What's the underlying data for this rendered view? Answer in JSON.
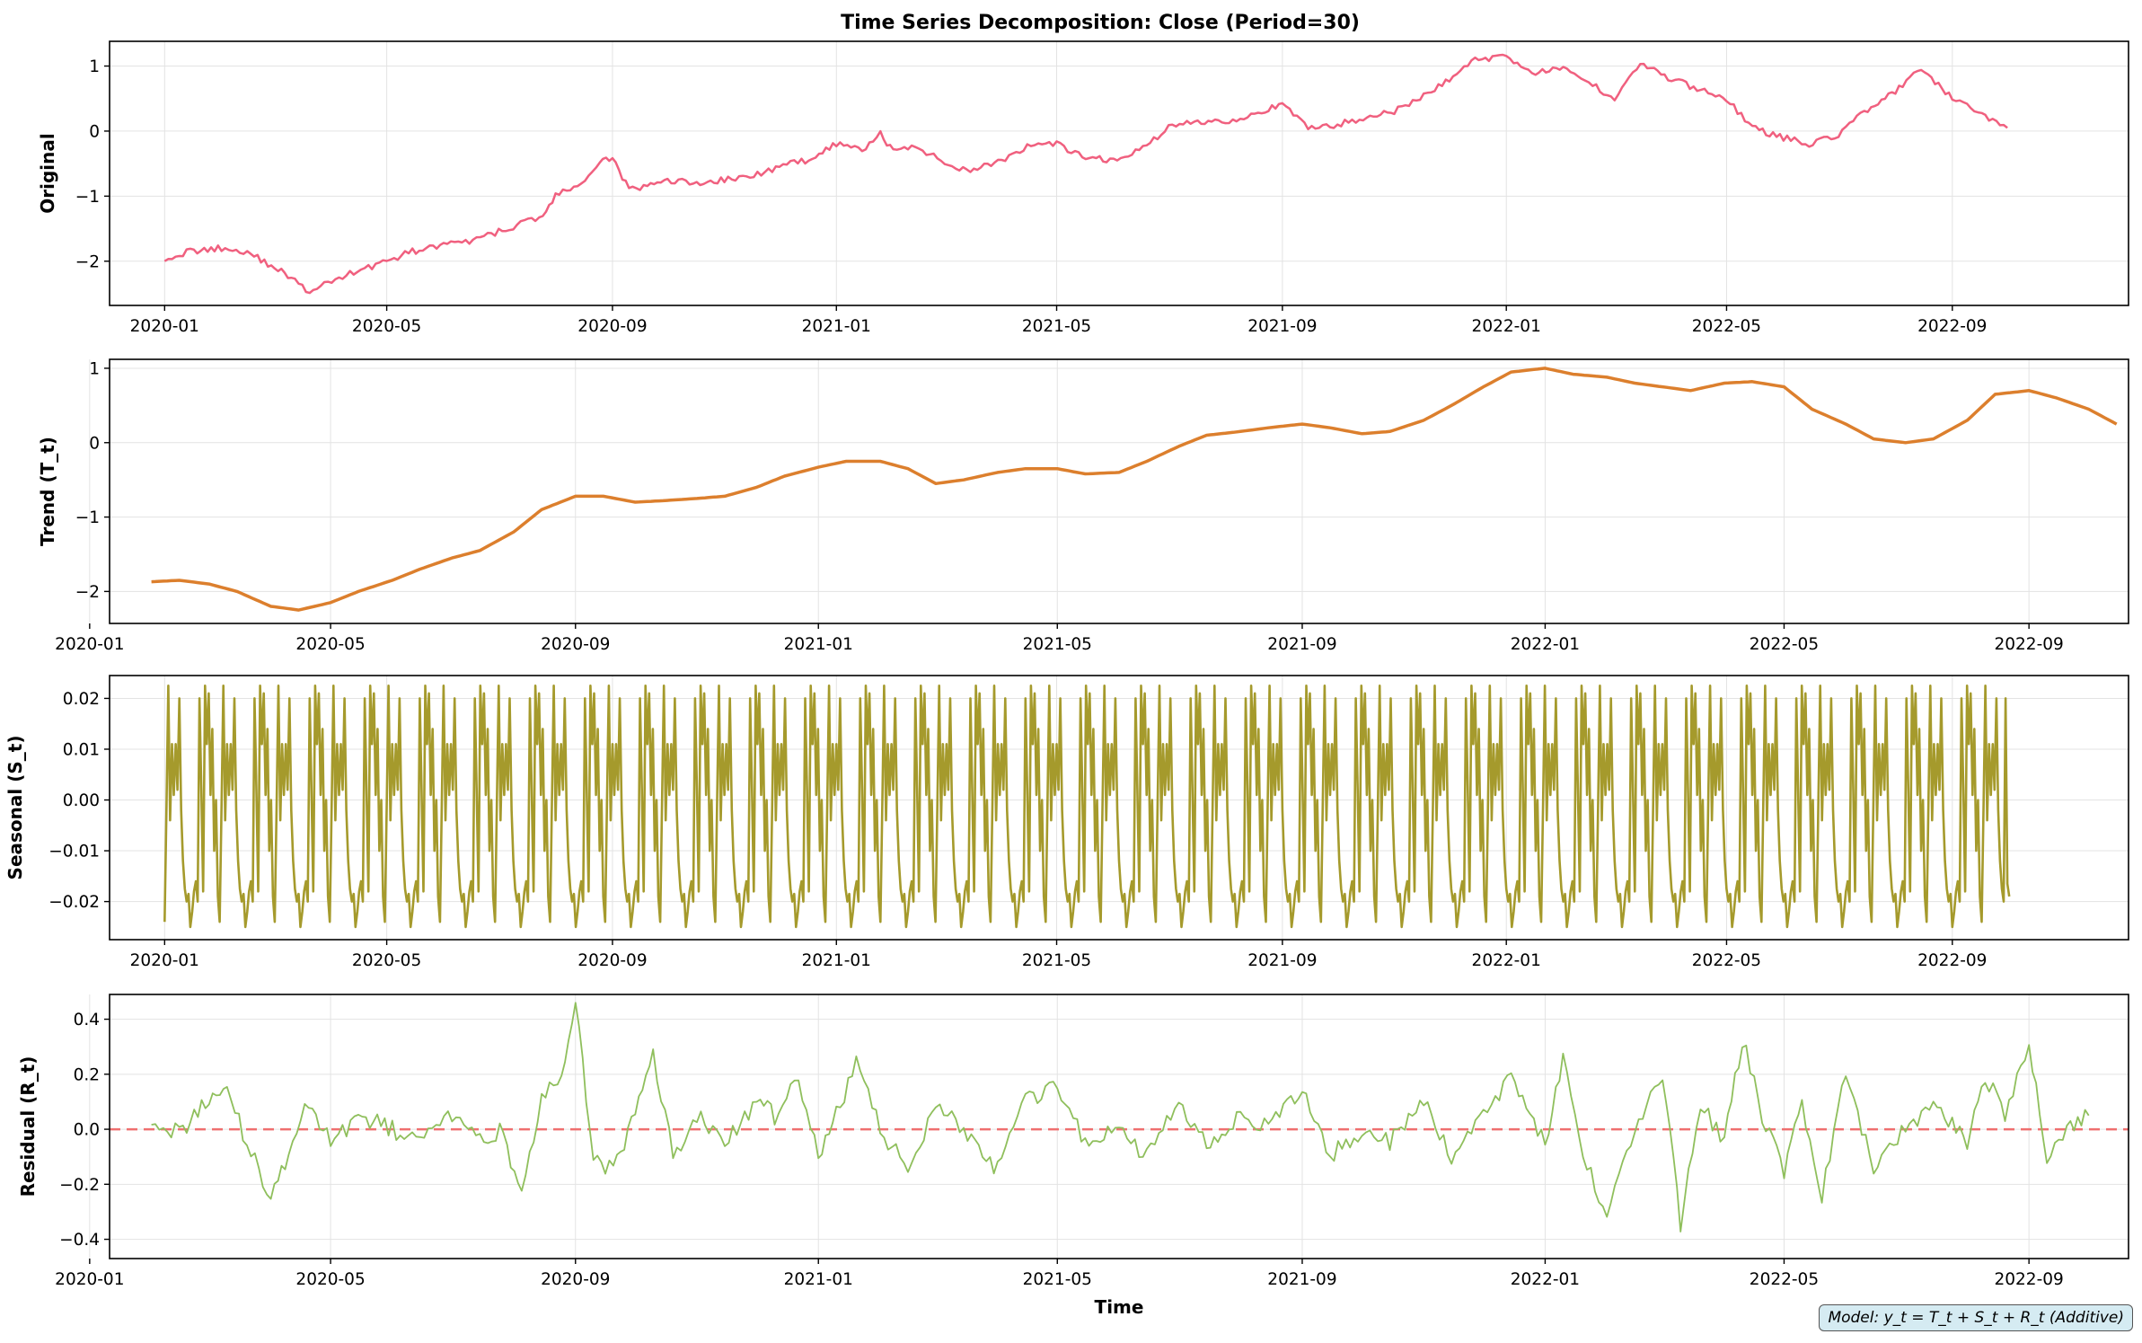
{
  "figure": {
    "title": "Time Series Decomposition: Close (Period=30)",
    "xlabel": "Time",
    "note": "Model: y_t = T_t + S_t + R_t (Additive)"
  },
  "chart_data": [
    {
      "type": "line",
      "name": "original",
      "ylabel": "Original",
      "color": "#f0607f",
      "x_range": [
        "2019-12-02",
        "2022-12-06"
      ],
      "ylim": [
        -2.68,
        1.38
      ],
      "yticks": [
        -2,
        -1,
        0,
        1
      ],
      "xticks": [
        "2020-01",
        "2020-05",
        "2020-09",
        "2021-01",
        "2021-05",
        "2021-09",
        "2022-01",
        "2022-05",
        "2022-09"
      ],
      "grid": true,
      "series": [
        {
          "dates": [
            "2020-01-01",
            "2020-01-15",
            "2020-02-01",
            "2020-02-15",
            "2020-03-01",
            "2020-03-10",
            "2020-03-20",
            "2020-04-01",
            "2020-04-15",
            "2020-05-01",
            "2020-05-15",
            "2020-06-01",
            "2020-06-15",
            "2020-07-01",
            "2020-07-15",
            "2020-07-25",
            "2020-08-01",
            "2020-08-15",
            "2020-08-25",
            "2020-09-01",
            "2020-09-10",
            "2020-09-20",
            "2020-10-01",
            "2020-10-15",
            "2020-11-01",
            "2020-11-15",
            "2020-12-01",
            "2020-12-15",
            "2021-01-01",
            "2021-01-15",
            "2021-01-25",
            "2021-02-01",
            "2021-02-15",
            "2021-03-01",
            "2021-03-15",
            "2021-04-01",
            "2021-04-15",
            "2021-05-01",
            "2021-05-15",
            "2021-06-01",
            "2021-06-15",
            "2021-07-01",
            "2021-07-15",
            "2021-08-01",
            "2021-08-15",
            "2021-09-01",
            "2021-09-15",
            "2021-10-01",
            "2021-10-15",
            "2021-11-01",
            "2021-11-15",
            "2021-12-01",
            "2021-12-15",
            "2022-01-01",
            "2022-01-15",
            "2022-02-01",
            "2022-02-15",
            "2022-03-01",
            "2022-03-15",
            "2022-04-01",
            "2022-04-15",
            "2022-05-01",
            "2022-05-15",
            "2022-06-01",
            "2022-06-15",
            "2022-07-01",
            "2022-07-15",
            "2022-08-01",
            "2022-08-15",
            "2022-09-01",
            "2022-09-15",
            "2022-10-01"
          ],
          "values": [
            -1.95,
            -1.85,
            -1.8,
            -1.85,
            -2.1,
            -2.25,
            -2.5,
            -2.3,
            -2.15,
            -2.0,
            -1.85,
            -1.75,
            -1.7,
            -1.55,
            -1.4,
            -1.3,
            -1.0,
            -0.8,
            -0.5,
            -0.4,
            -0.9,
            -0.85,
            -0.75,
            -0.8,
            -0.75,
            -0.7,
            -0.55,
            -0.45,
            -0.2,
            -0.3,
            -0.05,
            -0.3,
            -0.25,
            -0.5,
            -0.6,
            -0.45,
            -0.25,
            -0.2,
            -0.4,
            -0.45,
            -0.3,
            0.05,
            0.15,
            0.15,
            0.25,
            0.4,
            0.05,
            0.1,
            0.2,
            0.3,
            0.5,
            0.8,
            1.1,
            1.15,
            0.9,
            0.95,
            0.75,
            0.5,
            1.05,
            0.8,
            0.65,
            0.5,
            0.05,
            -0.1,
            -0.2,
            -0.05,
            0.3,
            0.6,
            0.95,
            0.5,
            0.3,
            0.05
          ]
        }
      ]
    },
    {
      "type": "line",
      "name": "trend",
      "ylabel": "Trend (T_t)",
      "color": "#dc7f2d",
      "x_range": [
        "2020-01-11",
        "2022-10-21"
      ],
      "ylim": [
        -2.43,
        1.12
      ],
      "yticks": [
        -2,
        -1,
        0,
        1
      ],
      "xticks": [
        "2020-01",
        "2020-05",
        "2020-09",
        "2021-01",
        "2021-05",
        "2021-09",
        "2022-01",
        "2022-05",
        "2022-09"
      ],
      "grid": true,
      "series": [
        {
          "dates": [
            "2020-02-01",
            "2020-02-15",
            "2020-03-01",
            "2020-03-15",
            "2020-04-01",
            "2020-04-15",
            "2020-05-01",
            "2020-05-15",
            "2020-06-01",
            "2020-06-15",
            "2020-07-01",
            "2020-07-15",
            "2020-08-01",
            "2020-08-15",
            "2020-09-01",
            "2020-09-15",
            "2020-10-01",
            "2020-10-15",
            "2020-11-01",
            "2020-11-15",
            "2020-12-01",
            "2020-12-15",
            "2021-01-01",
            "2021-01-15",
            "2021-02-01",
            "2021-02-15",
            "2021-03-01",
            "2021-03-15",
            "2021-04-01",
            "2021-04-15",
            "2021-05-01",
            "2021-05-15",
            "2021-06-01",
            "2021-06-15",
            "2021-07-01",
            "2021-07-15",
            "2021-08-01",
            "2021-08-15",
            "2021-09-01",
            "2021-09-15",
            "2021-10-01",
            "2021-10-15",
            "2021-11-01",
            "2021-11-15",
            "2021-12-01",
            "2021-12-15",
            "2022-01-01",
            "2022-01-15",
            "2022-02-01",
            "2022-02-15",
            "2022-03-01",
            "2022-03-15",
            "2022-04-01",
            "2022-04-15",
            "2022-05-01",
            "2022-05-15",
            "2022-06-01",
            "2022-06-15",
            "2022-07-01",
            "2022-07-15",
            "2022-08-01",
            "2022-08-15",
            "2022-09-01",
            "2022-09-15",
            "2022-10-01",
            "2022-10-15"
          ],
          "values": [
            -1.87,
            -1.85,
            -1.9,
            -2.0,
            -2.2,
            -2.25,
            -2.15,
            -2.0,
            -1.85,
            -1.7,
            -1.55,
            -1.45,
            -1.2,
            -0.9,
            -0.72,
            -0.72,
            -0.8,
            -0.78,
            -0.75,
            -0.72,
            -0.6,
            -0.45,
            -0.33,
            -0.25,
            -0.25,
            -0.35,
            -0.55,
            -0.5,
            -0.4,
            -0.35,
            -0.35,
            -0.42,
            -0.4,
            -0.25,
            -0.05,
            0.1,
            0.15,
            0.2,
            0.25,
            0.2,
            0.12,
            0.15,
            0.3,
            0.5,
            0.75,
            0.95,
            1.0,
            0.92,
            0.88,
            0.8,
            0.75,
            0.7,
            0.8,
            0.82,
            0.75,
            0.45,
            0.25,
            0.05,
            0.0,
            0.05,
            0.3,
            0.65,
            0.7,
            0.6,
            0.45,
            0.25
          ]
        }
      ]
    },
    {
      "type": "line",
      "name": "seasonal",
      "ylabel": "Seasonal (S_t)",
      "color": "#a59a2c",
      "x_range": [
        "2019-12-02",
        "2022-12-06"
      ],
      "ylim": [
        -0.0275,
        0.0245
      ],
      "yticks": [
        -0.02,
        -0.01,
        0.0,
        0.01,
        0.02
      ],
      "ytick_labels": [
        "−0.02",
        "−0.01",
        "0.00",
        "0.01",
        "0.02"
      ],
      "xticks": [
        "2020-01",
        "2020-05",
        "2020-09",
        "2021-01",
        "2021-05",
        "2021-09",
        "2022-01",
        "2022-05",
        "2022-09"
      ],
      "grid": true,
      "start_date": "2020-01-01",
      "end_date": "2022-10-02",
      "period": 30,
      "series": [
        {
          "pattern": [
            -0.024,
            -0.001,
            0.0225,
            -0.004,
            0.011,
            0.001,
            0.011,
            0.002,
            0.02,
            -0.002,
            -0.012,
            -0.0175,
            -0.02,
            -0.0185,
            -0.025,
            -0.022,
            -0.018,
            -0.016,
            -0.02,
            0.02,
            0.002,
            -0.018,
            0.0225,
            0.011,
            0.021,
            0.001,
            0.014,
            -0.01,
            0.0,
            -0.019
          ],
          "tail": [
            0.02,
            -0.0165,
            -0.019
          ]
        }
      ]
    },
    {
      "type": "line",
      "name": "residual",
      "ylabel": "Residual (R_t)",
      "color": "#8fbf5c",
      "zero_line_color": "#ef6f6f",
      "x_range": [
        "2020-01-11",
        "2022-10-21"
      ],
      "ylim": [
        -0.47,
        0.49
      ],
      "yticks": [
        -0.4,
        -0.2,
        0.0,
        0.2,
        0.4
      ],
      "ytick_labels": [
        "−0.4",
        "−0.2",
        "0.0",
        "0.2",
        "0.4"
      ],
      "xticks": [
        "2020-01",
        "2020-05",
        "2020-09",
        "2021-01",
        "2021-05",
        "2021-09",
        "2022-01",
        "2022-05",
        "2022-09"
      ],
      "grid": true,
      "series": [
        {
          "dates": [
            "2020-02-01",
            "2020-02-15",
            "2020-03-01",
            "2020-03-10",
            "2020-03-20",
            "2020-04-01",
            "2020-04-10",
            "2020-04-20",
            "2020-05-01",
            "2020-05-15",
            "2020-06-01",
            "2020-06-15",
            "2020-07-01",
            "2020-07-15",
            "2020-07-25",
            "2020-08-05",
            "2020-08-15",
            "2020-08-25",
            "2020-09-01",
            "2020-09-10",
            "2020-09-20",
            "2020-10-01",
            "2020-10-10",
            "2020-10-20",
            "2020-11-01",
            "2020-11-15",
            "2020-12-01",
            "2020-12-10",
            "2020-12-20",
            "2021-01-01",
            "2021-01-10",
            "2021-01-20",
            "2021-02-01",
            "2021-02-15",
            "2021-03-01",
            "2021-03-15",
            "2021-04-01",
            "2021-04-15",
            "2021-05-01",
            "2021-05-15",
            "2021-06-01",
            "2021-06-15",
            "2021-07-01",
            "2021-07-15",
            "2021-08-01",
            "2021-08-15",
            "2021-09-01",
            "2021-09-15",
            "2021-10-01",
            "2021-10-15",
            "2021-11-01",
            "2021-11-15",
            "2021-12-01",
            "2021-12-15",
            "2022-01-01",
            "2022-01-10",
            "2022-01-20",
            "2022-02-01",
            "2022-02-15",
            "2022-03-01",
            "2022-03-10",
            "2022-03-20",
            "2022-04-01",
            "2022-04-10",
            "2022-04-20",
            "2022-05-01",
            "2022-05-10",
            "2022-05-20",
            "2022-06-01",
            "2022-06-15",
            "2022-07-01",
            "2022-07-15",
            "2022-08-01",
            "2022-08-10",
            "2022-08-20",
            "2022-09-01",
            "2022-09-10",
            "2022-09-20",
            "2022-10-01"
          ],
          "values": [
            0.05,
            -0.02,
            0.12,
            0.15,
            -0.05,
            -0.25,
            -0.1,
            0.1,
            -0.05,
            0.05,
            0.0,
            -0.05,
            0.05,
            -0.05,
            0.0,
            -0.22,
            0.1,
            0.2,
            0.45,
            -0.1,
            -0.15,
            0.05,
            0.28,
            -0.1,
            0.05,
            -0.05,
            0.1,
            0.05,
            0.2,
            -0.1,
            0.05,
            0.25,
            0.0,
            -0.15,
            0.1,
            0.0,
            -0.15,
            0.1,
            0.15,
            -0.05,
            0.0,
            -0.1,
            0.1,
            -0.05,
            0.05,
            0.0,
            0.15,
            -0.1,
            0.0,
            -0.05,
            0.1,
            -0.1,
            0.05,
            0.2,
            -0.05,
            0.25,
            -0.1,
            -0.3,
            0.0,
            0.2,
            -0.35,
            0.1,
            -0.05,
            0.33,
            0.05,
            -0.15,
            0.1,
            -0.25,
            0.2,
            -0.15,
            0.0,
            0.1,
            -0.05,
            0.2,
            0.05,
            0.3,
            -0.1,
            0.0,
            0.05
          ]
        }
      ]
    }
  ]
}
